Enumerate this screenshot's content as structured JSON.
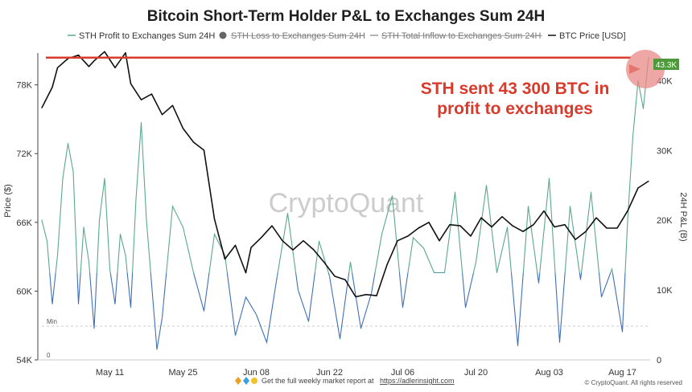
{
  "title": "Bitcoin Short-Term Holder P&L to Exchanges Sum 24H",
  "legend": [
    {
      "label": "STH Profit to Exchanges Sum 24H",
      "color": "#5aa88a",
      "struck": false,
      "marker": "line"
    },
    {
      "label": "STH Loss to Exchanges Sum 24H",
      "color": "#666666",
      "struck": true,
      "marker": "dot"
    },
    {
      "label": "STH Total Inflow to Exchanges Sum 24H",
      "color": "#999999",
      "struck": true,
      "marker": "line"
    },
    {
      "label": "BTC Price [USD]",
      "color": "#111111",
      "struck": false,
      "marker": "line"
    }
  ],
  "annotation": {
    "line1": "STH sent 43 300 BTC in",
    "line2": "profit to exchanges",
    "color": "#d83a2b"
  },
  "badge": "43.3K",
  "watermark": "CryptoQuant",
  "min_label": "Min",
  "zero_label": "0",
  "footer": {
    "text": "Get the full weekly market report at",
    "link": "https://adlerinsight.com"
  },
  "copyright": "© CryptoQuant. All rights reserved",
  "chart_data": {
    "type": "line",
    "xlabels": [
      "May 11",
      "May 25",
      "Jun 08",
      "Jun 22",
      "Jul 06",
      "Jul 20",
      "Aug 03",
      "Aug 17"
    ],
    "ylabel_left": "Price ($)",
    "ylabel_right": "24H P&L (B)",
    "y_left_ticks": [
      "54K",
      "60K",
      "66K",
      "72K",
      "78K"
    ],
    "y_left_values": [
      54000,
      60000,
      66000,
      72000,
      78000
    ],
    "y_left_range": [
      54000,
      80500
    ],
    "y_right_ticks": [
      "0",
      "10K",
      "20K",
      "30K",
      "40K"
    ],
    "y_right_values": [
      0,
      10000,
      20000,
      30000,
      40000
    ],
    "y_right_range": [
      0,
      43500
    ],
    "x_range": [
      "2024-04-28",
      "2024-08-22"
    ],
    "series": [
      {
        "name": "BTC Price [USD]",
        "color": "#111111",
        "axis": "left",
        "x": [
          "2024-04-28",
          "2024-04-30",
          "2024-05-01",
          "2024-05-03",
          "2024-05-05",
          "2024-05-07",
          "2024-05-08",
          "2024-05-10",
          "2024-05-12",
          "2024-05-14",
          "2024-05-15",
          "2024-05-17",
          "2024-05-19",
          "2024-05-21",
          "2024-05-23",
          "2024-05-25",
          "2024-05-27",
          "2024-05-29",
          "2024-05-31",
          "2024-06-02",
          "2024-06-04",
          "2024-06-06",
          "2024-06-07",
          "2024-06-09",
          "2024-06-11",
          "2024-06-13",
          "2024-06-15",
          "2024-06-17",
          "2024-06-19",
          "2024-06-21",
          "2024-06-23",
          "2024-06-25",
          "2024-06-27",
          "2024-06-29",
          "2024-07-01",
          "2024-07-03",
          "2024-07-05",
          "2024-07-07",
          "2024-07-09",
          "2024-07-11",
          "2024-07-13",
          "2024-07-15",
          "2024-07-17",
          "2024-07-19",
          "2024-07-21",
          "2024-07-23",
          "2024-07-25",
          "2024-07-27",
          "2024-07-29",
          "2024-07-31",
          "2024-08-02",
          "2024-08-04",
          "2024-08-06",
          "2024-08-08",
          "2024-08-10",
          "2024-08-12",
          "2024-08-14",
          "2024-08-16",
          "2024-08-18",
          "2024-08-20",
          "2024-08-22"
        ],
        "values": [
          76000,
          77800,
          79500,
          80300,
          80600,
          79600,
          80100,
          80900,
          79500,
          80800,
          78100,
          76700,
          77200,
          75400,
          76200,
          74200,
          73000,
          72300,
          66300,
          62800,
          64000,
          61600,
          63800,
          64700,
          65700,
          64400,
          63600,
          64400,
          63600,
          62500,
          61300,
          61000,
          59500,
          59700,
          59600,
          62300,
          64400,
          64800,
          65500,
          66000,
          64400,
          65800,
          65700,
          64800,
          66400,
          65600,
          66500,
          65700,
          65200,
          65800,
          67000,
          65600,
          65800,
          64500,
          65200,
          66400,
          65500,
          65500,
          67000,
          69000,
          69600
        ]
      },
      {
        "name": "STH Profit to Exchanges Sum 24H",
        "color": "#5aa88a",
        "axis": "right",
        "x": [
          "2024-04-28",
          "2024-04-29",
          "2024-04-30",
          "2024-05-01",
          "2024-05-02",
          "2024-05-03",
          "2024-05-04",
          "2024-05-05",
          "2024-05-06",
          "2024-05-07",
          "2024-05-08",
          "2024-05-09",
          "2024-05-10",
          "2024-05-11",
          "2024-05-12",
          "2024-05-13",
          "2024-05-14",
          "2024-05-15",
          "2024-05-16",
          "2024-05-17",
          "2024-05-18",
          "2024-05-20",
          "2024-05-21",
          "2024-05-23",
          "2024-05-25",
          "2024-05-27",
          "2024-05-29",
          "2024-05-31",
          "2024-06-02",
          "2024-06-04",
          "2024-06-06",
          "2024-06-08",
          "2024-06-10",
          "2024-06-12",
          "2024-06-14",
          "2024-06-16",
          "2024-06-18",
          "2024-06-20",
          "2024-06-22",
          "2024-06-24",
          "2024-06-26",
          "2024-06-28",
          "2024-06-30",
          "2024-07-02",
          "2024-07-04",
          "2024-07-06",
          "2024-07-08",
          "2024-07-10",
          "2024-07-12",
          "2024-07-14",
          "2024-07-16",
          "2024-07-18",
          "2024-07-20",
          "2024-07-22",
          "2024-07-24",
          "2024-07-26",
          "2024-07-28",
          "2024-07-30",
          "2024-08-01",
          "2024-08-03",
          "2024-08-05",
          "2024-08-07",
          "2024-08-09",
          "2024-08-11",
          "2024-08-13",
          "2024-08-15",
          "2024-08-17",
          "2024-08-18",
          "2024-08-19",
          "2024-08-20",
          "2024-08-21",
          "2024-08-22"
        ],
        "values": [
          20000,
          17000,
          8000,
          15000,
          26000,
          31000,
          27000,
          8000,
          19000,
          14000,
          4500,
          20000,
          26000,
          13000,
          8000,
          18000,
          15000,
          7500,
          23000,
          34000,
          20000,
          1500,
          6000,
          22000,
          19000,
          12500,
          7000,
          18000,
          15000,
          3500,
          9000,
          6500,
          2500,
          12000,
          21000,
          10000,
          5500,
          17000,
          12000,
          3000,
          14000,
          4500,
          9500,
          18000,
          23500,
          7500,
          17500,
          16000,
          12500,
          12500,
          24000,
          7500,
          14000,
          25000,
          12500,
          19000,
          2000,
          22000,
          11000,
          26000,
          2500,
          22000,
          11500,
          24000,
          9000,
          13000,
          4000,
          20000,
          32000,
          40000,
          36000,
          43300
        ]
      }
    ],
    "annotation_level": 43300
  }
}
